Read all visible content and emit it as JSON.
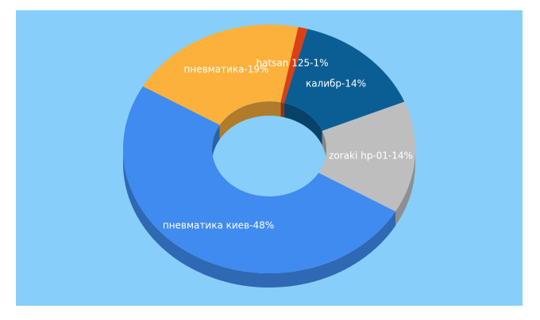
{
  "chart_data": {
    "type": "donut3d",
    "values": [
      1,
      14,
      14,
      48,
      19
    ],
    "value_labels": [
      "hatsan 125-1%",
      "калибр-14%",
      "zoraki hp-01-14%",
      "пневматика киев-48%",
      "пневматика-19%"
    ],
    "colors": [
      "#dc3f12",
      "#0b5e94",
      "#bebebe",
      "#3f8bef",
      "#fbb13c"
    ],
    "background": "#87cefa"
  }
}
